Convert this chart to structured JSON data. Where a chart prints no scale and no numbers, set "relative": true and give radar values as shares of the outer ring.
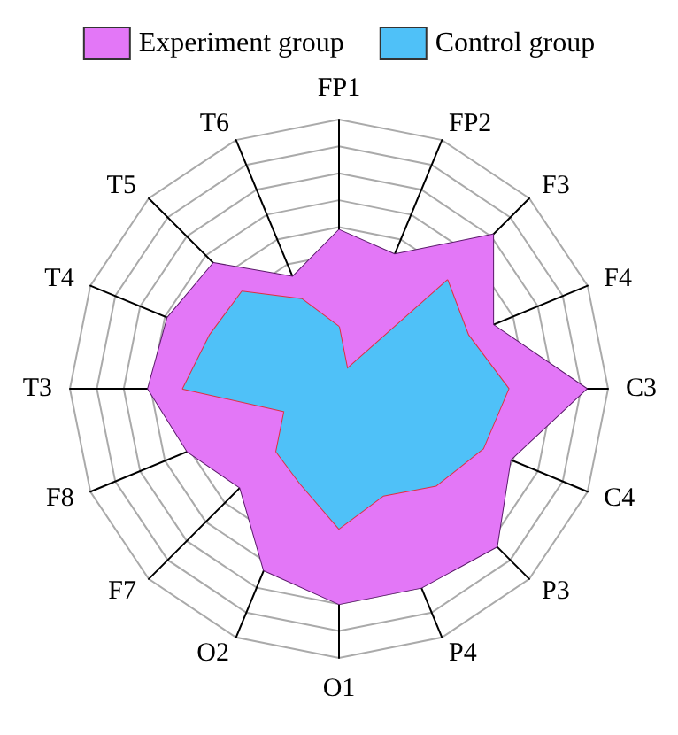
{
  "chart_data": {
    "type": "radar",
    "relative": true,
    "legend": "top",
    "categories": [
      "FP1",
      "FP2",
      "F3",
      "F4",
      "C3",
      "C4",
      "P3",
      "P4",
      "O1",
      "O2",
      "F7",
      "F8",
      "T3",
      "T4",
      "T5",
      "T6"
    ],
    "series": [
      {
        "name": "Experiment group",
        "color": "#e377f7",
        "values": [
          0.59,
          0.54,
          0.81,
          0.62,
          0.92,
          0.69,
          0.83,
          0.8,
          0.8,
          0.73,
          0.52,
          0.61,
          0.71,
          0.69,
          0.66,
          0.45
        ]
      },
      {
        "name": "Control group",
        "color": "#4fc1f8",
        "values": [
          0.23,
          0.08,
          0.57,
          0.52,
          0.63,
          0.58,
          0.51,
          0.43,
          0.52,
          0.38,
          0.33,
          0.22,
          0.58,
          0.52,
          0.51,
          0.36
        ]
      }
    ]
  }
}
